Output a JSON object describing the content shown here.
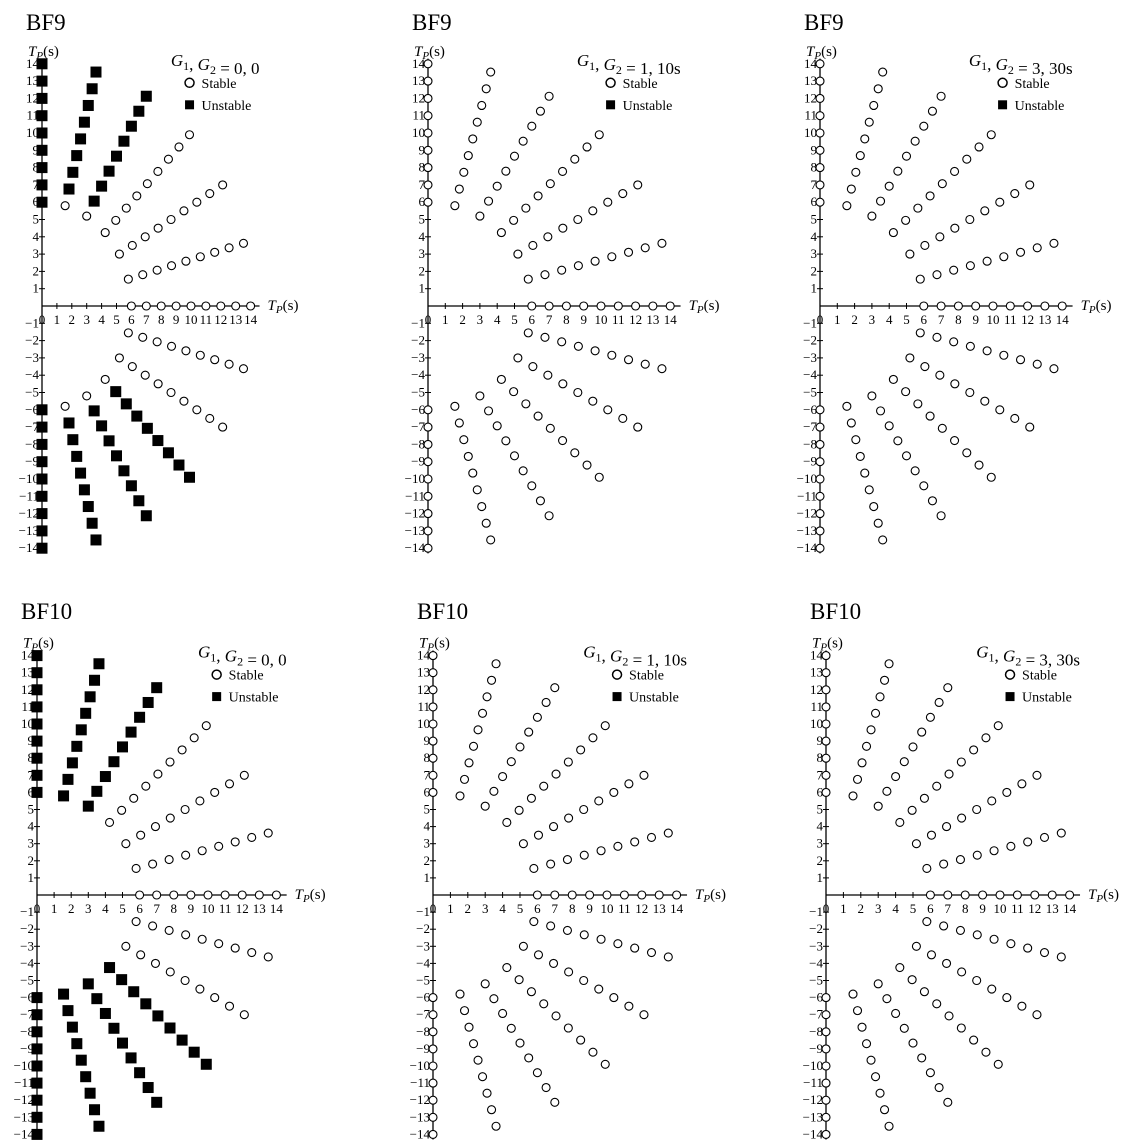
{
  "figure": {
    "legend": {
      "stable": "Stable",
      "unstable": "Unstable"
    },
    "axis_label_tp": "T",
    "axis_label_sub": "P",
    "axis_label_unit": "(s)"
  },
  "chart_data": [
    {
      "type": "scatter",
      "title": "BF9",
      "gains": "G1, G2 = 0, 0",
      "gain_values": {
        "G1": "0",
        "G2": "0"
      },
      "xlabel": "TP(s)",
      "ylabel": "TP(s)",
      "xlim": [
        0,
        14
      ],
      "ylim": [
        -14,
        14
      ],
      "ticks_x": [
        0,
        1,
        2,
        3,
        4,
        5,
        6,
        7,
        8,
        9,
        10,
        11,
        12,
        13,
        14
      ],
      "ticks_y": [
        -14,
        -13,
        -12,
        -11,
        -10,
        -9,
        -8,
        -7,
        -6,
        -5,
        -4,
        -3,
        -2,
        -1,
        1,
        2,
        3,
        4,
        5,
        6,
        7,
        8,
        9,
        10,
        11,
        12,
        13,
        14
      ],
      "grid": "polar sweep of (Tp1, Tp2) at 15° steps, radius 6 to 14",
      "series": [
        {
          "name": "Stable",
          "marker": "open-circle",
          "upper_half_unstable_rule": "angle >= 60° and radius >= 7, or angle = 90°",
          "lower_half_unstable_rule": "angle <= -45° and radius >= 7, or angle = -90°"
        },
        {
          "name": "Unstable",
          "marker": "filled-square"
        }
      ]
    },
    {
      "type": "scatter",
      "title": "BF9",
      "gains": "G1, G2 = 1, 10s",
      "gain_values": {
        "G1": "1",
        "G2": "10s"
      },
      "xlabel": "TP(s)",
      "ylabel": "TP(s)",
      "xlim": [
        0,
        14
      ],
      "ylim": [
        -14,
        14
      ],
      "ticks_x": [
        0,
        1,
        2,
        3,
        4,
        5,
        6,
        7,
        8,
        9,
        10,
        11,
        12,
        13,
        14
      ],
      "ticks_y": [
        -14,
        -13,
        -12,
        -11,
        -10,
        -9,
        -8,
        -7,
        -6,
        -5,
        -4,
        -3,
        -2,
        -1,
        1,
        2,
        3,
        4,
        5,
        6,
        7,
        8,
        9,
        10,
        11,
        12,
        13,
        14
      ],
      "series": [
        {
          "name": "Stable",
          "marker": "open-circle",
          "all_points": true
        }
      ]
    },
    {
      "type": "scatter",
      "title": "BF9",
      "gains": "G1, G2 = 3, 30s",
      "gain_values": {
        "G1": "3",
        "G2": "30s"
      },
      "xlabel": "TP(s)",
      "ylabel": "TP(s)",
      "xlim": [
        0,
        14
      ],
      "ylim": [
        -14,
        14
      ],
      "ticks_x": [
        0,
        1,
        2,
        3,
        4,
        5,
        6,
        7,
        8,
        9,
        10,
        11,
        12,
        13,
        14
      ],
      "ticks_y": [
        -14,
        -13,
        -12,
        -11,
        -10,
        -9,
        -8,
        -7,
        -6,
        -5,
        -4,
        -3,
        -2,
        -1,
        1,
        2,
        3,
        4,
        5,
        6,
        7,
        8,
        9,
        10,
        11,
        12,
        13,
        14
      ],
      "series": [
        {
          "name": "Stable",
          "marker": "open-circle",
          "all_points": true
        }
      ]
    },
    {
      "type": "scatter",
      "title": "BF10",
      "gains": "G1, G2 = 0, 0",
      "gain_values": {
        "G1": "0",
        "G2": "0"
      },
      "xlabel": "TP(s)",
      "ylabel": "TP(s)",
      "xlim": [
        0,
        14
      ],
      "ylim": [
        -14,
        14
      ],
      "ticks_x": [
        0,
        1,
        2,
        3,
        4,
        5,
        6,
        7,
        8,
        9,
        10,
        11,
        12,
        13,
        14
      ],
      "ticks_y": [
        -14,
        -13,
        -12,
        -11,
        -10,
        -9,
        -8,
        -7,
        -6,
        -5,
        -4,
        -3,
        -2,
        -1,
        1,
        2,
        3,
        4,
        5,
        6,
        7,
        8,
        9,
        10,
        11,
        12,
        13,
        14
      ],
      "series": [
        {
          "name": "Stable",
          "marker": "open-circle"
        },
        {
          "name": "Unstable",
          "marker": "filled-square"
        }
      ]
    },
    {
      "type": "scatter",
      "title": "BF10",
      "gains": "G1, G2 = 1, 10s",
      "gain_values": {
        "G1": "1",
        "G2": "10s"
      },
      "xlabel": "TP(s)",
      "ylabel": "TP(s)",
      "xlim": [
        0,
        14
      ],
      "ylim": [
        -14,
        14
      ],
      "ticks_x": [
        0,
        1,
        2,
        3,
        4,
        5,
        6,
        7,
        8,
        9,
        10,
        11,
        12,
        13,
        14
      ],
      "ticks_y": [
        -14,
        -13,
        -12,
        -11,
        -10,
        -9,
        -8,
        -7,
        -6,
        -5,
        -4,
        -3,
        -2,
        -1,
        1,
        2,
        3,
        4,
        5,
        6,
        7,
        8,
        9,
        10,
        11,
        12,
        13,
        14
      ],
      "series": [
        {
          "name": "Stable",
          "marker": "open-circle",
          "all_points": true
        }
      ]
    },
    {
      "type": "scatter",
      "title": "BF10",
      "gains": "G1, G2 = 3, 30s",
      "gain_values": {
        "G1": "3",
        "G2": "30s"
      },
      "xlabel": "TP(s)",
      "ylabel": "TP(s)",
      "xlim": [
        0,
        14
      ],
      "ylim": [
        -14,
        14
      ],
      "ticks_x": [
        0,
        1,
        2,
        3,
        4,
        5,
        6,
        7,
        8,
        9,
        10,
        11,
        12,
        13,
        14
      ],
      "ticks_y": [
        -14,
        -13,
        -12,
        -11,
        -10,
        -9,
        -8,
        -7,
        -6,
        -5,
        -4,
        -3,
        -2,
        -1,
        1,
        2,
        3,
        4,
        5,
        6,
        7,
        8,
        9,
        10,
        11,
        12,
        13,
        14
      ],
      "series": [
        {
          "name": "Stable",
          "marker": "open-circle",
          "all_points": true
        }
      ]
    }
  ]
}
